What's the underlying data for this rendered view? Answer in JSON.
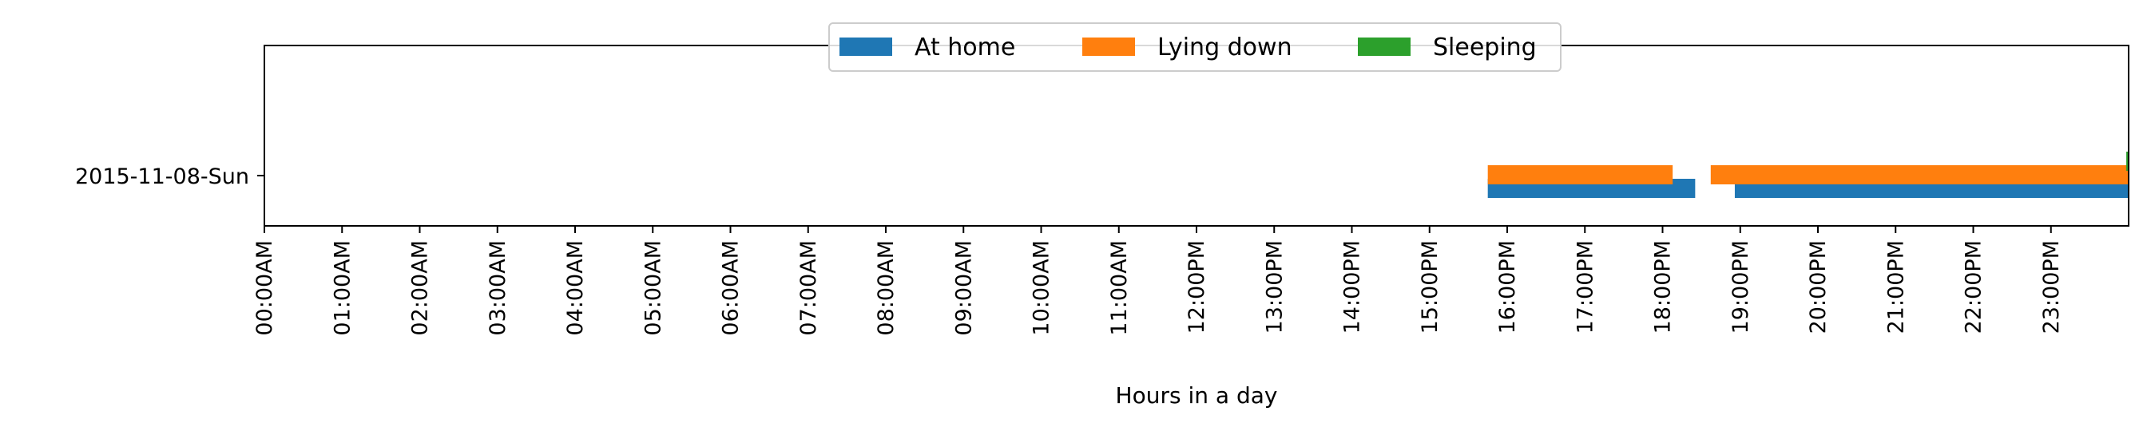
{
  "chart_data": {
    "type": "timeline",
    "title": "",
    "xlabel": "Hours in a day",
    "ylabel": "",
    "xlim": [
      0,
      24
    ],
    "x_ticks": [
      {
        "value": 0,
        "label": "00:00AM"
      },
      {
        "value": 1,
        "label": "01:00AM"
      },
      {
        "value": 2,
        "label": "02:00AM"
      },
      {
        "value": 3,
        "label": "03:00AM"
      },
      {
        "value": 4,
        "label": "04:00AM"
      },
      {
        "value": 5,
        "label": "05:00AM"
      },
      {
        "value": 6,
        "label": "06:00AM"
      },
      {
        "value": 7,
        "label": "07:00AM"
      },
      {
        "value": 8,
        "label": "08:00AM"
      },
      {
        "value": 9,
        "label": "09:00AM"
      },
      {
        "value": 10,
        "label": "10:00AM"
      },
      {
        "value": 11,
        "label": "11:00AM"
      },
      {
        "value": 12,
        "label": "12:00PM"
      },
      {
        "value": 13,
        "label": "13:00PM"
      },
      {
        "value": 14,
        "label": "14:00PM"
      },
      {
        "value": 15,
        "label": "15:00PM"
      },
      {
        "value": 16,
        "label": "16:00PM"
      },
      {
        "value": 17,
        "label": "17:00PM"
      },
      {
        "value": 18,
        "label": "18:00PM"
      },
      {
        "value": 19,
        "label": "19:00PM"
      },
      {
        "value": 20,
        "label": "20:00PM"
      },
      {
        "value": 21,
        "label": "21:00PM"
      },
      {
        "value": 22,
        "label": "22:00PM"
      },
      {
        "value": 23,
        "label": "23:00PM"
      }
    ],
    "categories": [
      "2015-11-08-Sun"
    ],
    "legend": {
      "placement": "upper-center",
      "columns": 3
    },
    "grid": false,
    "series": [
      {
        "name": "At home",
        "color": "#1f77b4",
        "intervals": [
          [
            15.75,
            18.42
          ],
          [
            18.93,
            24.0
          ]
        ]
      },
      {
        "name": "Lying down",
        "color": "#ff7f0e",
        "intervals": [
          [
            15.75,
            18.13
          ],
          [
            18.62,
            24.0
          ]
        ]
      },
      {
        "name": "Sleeping",
        "color": "#2ca02c",
        "intervals": [
          [
            23.97,
            24.0
          ]
        ]
      }
    ]
  }
}
